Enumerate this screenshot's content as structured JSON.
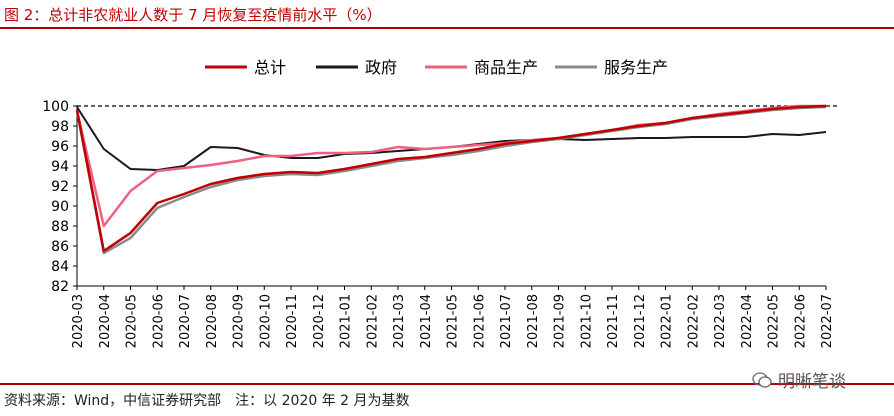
{
  "title": "图 2：总计非农就业人数于 7 月恢复至疫情前水平（%）",
  "source": "资料来源：Wind，中信证券研究部　注：以 2020 年 2 月为基数",
  "watermark": "明晰笔谈",
  "chart_data": {
    "type": "line",
    "x": [
      "2020-03",
      "2020-04",
      "2020-05",
      "2020-06",
      "2020-07",
      "2020-08",
      "2020-09",
      "2020-10",
      "2020-11",
      "2020-12",
      "2021-01",
      "2021-02",
      "2021-03",
      "2021-04",
      "2021-05",
      "2021-06",
      "2021-07",
      "2021-08",
      "2021-09",
      "2021-10",
      "2021-11",
      "2021-12",
      "2022-01",
      "2022-02",
      "2022-03",
      "2022-04",
      "2022-05",
      "2022-06",
      "2022-07"
    ],
    "ylim": [
      82,
      100
    ],
    "yticks": [
      82,
      84,
      86,
      88,
      90,
      92,
      94,
      96,
      98,
      100
    ],
    "reference_line": 100,
    "legend_position": "top",
    "series": [
      {
        "name": "总计",
        "color": "#c00000",
        "width": 2.5,
        "values": [
          99.6,
          85.5,
          87.3,
          90.3,
          91.2,
          92.2,
          92.8,
          93.2,
          93.4,
          93.3,
          93.7,
          94.2,
          94.7,
          94.9,
          95.3,
          95.7,
          96.2,
          96.5,
          96.8,
          97.2,
          97.6,
          98.0,
          98.3,
          98.8,
          99.1,
          99.4,
          99.7,
          99.9,
          100.0
        ]
      },
      {
        "name": "政府",
        "color": "#1a1a1a",
        "width": 2,
        "values": [
          99.9,
          95.7,
          93.7,
          93.6,
          94.0,
          95.9,
          95.8,
          95.1,
          94.8,
          94.8,
          95.2,
          95.3,
          95.5,
          95.7,
          95.9,
          96.2,
          96.5,
          96.6,
          96.7,
          96.6,
          96.7,
          96.8,
          96.8,
          96.9,
          96.9,
          96.9,
          97.2,
          97.1,
          97.4
        ]
      },
      {
        "name": "商品生产",
        "color": "#f06080",
        "width": 2.5,
        "values": [
          99.5,
          88.0,
          91.5,
          93.5,
          93.8,
          94.1,
          94.5,
          95.0,
          95.0,
          95.3,
          95.3,
          95.4,
          95.9,
          95.7,
          95.9,
          96.1,
          96.3,
          96.6,
          96.8,
          97.2,
          97.6,
          98.1,
          98.3,
          98.8,
          99.2,
          99.5,
          99.8,
          100.0,
          100.0
        ]
      },
      {
        "name": "服务生产",
        "color": "#8a8a8a",
        "width": 2.5,
        "values": [
          99.5,
          85.3,
          86.8,
          89.8,
          90.9,
          91.9,
          92.6,
          93.0,
          93.2,
          93.1,
          93.5,
          94.0,
          94.5,
          94.8,
          95.1,
          95.5,
          96.0,
          96.4,
          96.7,
          97.1,
          97.5,
          97.9,
          98.2,
          98.7,
          99.0,
          99.3,
          99.6,
          99.8,
          99.9
        ]
      }
    ]
  }
}
